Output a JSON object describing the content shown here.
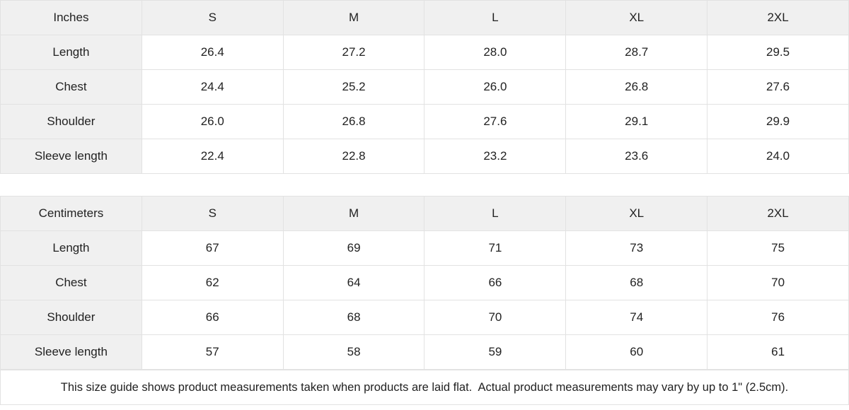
{
  "tables": [
    {
      "unit_label": "Inches",
      "sizes": [
        "S",
        "M",
        "L",
        "XL",
        "2XL"
      ],
      "rows": [
        {
          "label": "Length",
          "values": [
            "26.4",
            "27.2",
            "28.0",
            "28.7",
            "29.5"
          ]
        },
        {
          "label": "Chest",
          "values": [
            "24.4",
            "25.2",
            "26.0",
            "26.8",
            "27.6"
          ]
        },
        {
          "label": "Shoulder",
          "values": [
            "26.0",
            "26.8",
            "27.6",
            "29.1",
            "29.9"
          ]
        },
        {
          "label": "Sleeve length",
          "values": [
            "22.4",
            "22.8",
            "23.2",
            "23.6",
            "24.0"
          ]
        }
      ]
    },
    {
      "unit_label": "Centimeters",
      "sizes": [
        "S",
        "M",
        "L",
        "XL",
        "2XL"
      ],
      "rows": [
        {
          "label": "Length",
          "values": [
            "67",
            "69",
            "71",
            "73",
            "75"
          ]
        },
        {
          "label": "Chest",
          "values": [
            "62",
            "64",
            "66",
            "68",
            "70"
          ]
        },
        {
          "label": "Shoulder",
          "values": [
            "66",
            "68",
            "70",
            "74",
            "76"
          ]
        },
        {
          "label": "Sleeve length",
          "values": [
            "57",
            "58",
            "59",
            "60",
            "61"
          ]
        }
      ]
    }
  ],
  "footer": {
    "note": "This size guide shows product measurements taken when products are laid flat.  Actual product measurements may vary by up to 1\" (2.5cm)."
  },
  "colors": {
    "header_bg": "#f0f0f0",
    "cell_bg": "#ffffff",
    "border": "#e2e2e2",
    "text": "#222222"
  }
}
